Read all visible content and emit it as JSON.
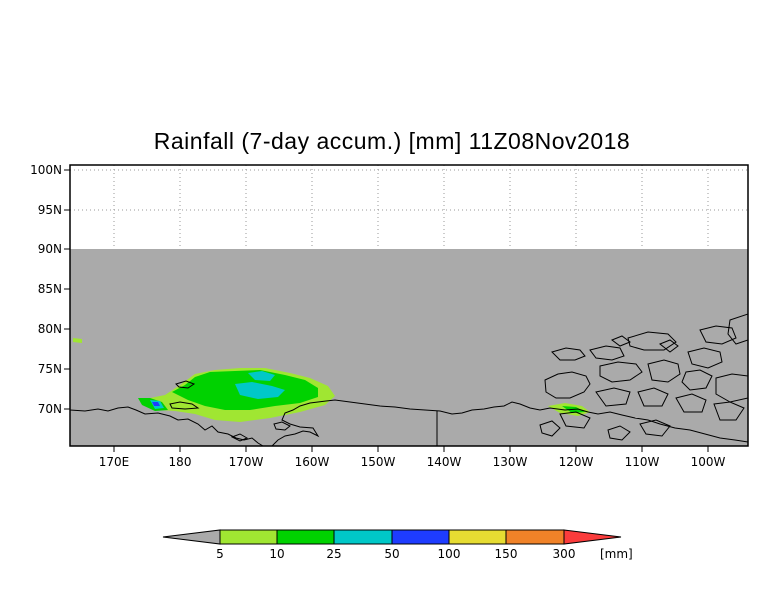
{
  "title": "Rainfall (7-day accum.) [mm] 11Z08Nov2018",
  "colors": {
    "no_data": "#aaaaaa",
    "lt5": "#aaaaaa",
    "c5_10": "#a0e632",
    "c10_25": "#00d200",
    "c25_50": "#00c8c8",
    "c50_100": "#1e3cff",
    "c100_150": "#e6dc32",
    "c150_300": "#f08228",
    "gt300": "#fa3c3c"
  },
  "map": {
    "lat_labels": [
      "100N",
      "95N",
      "90N",
      "85N",
      "80N",
      "75N",
      "70N"
    ],
    "lon_labels": [
      "170E",
      "180",
      "170W",
      "160W",
      "150W",
      "140W",
      "130W",
      "120W",
      "110W",
      "100W"
    ],
    "data_extent_north": "90N",
    "grid": "dotted"
  },
  "colorbar": {
    "labels": [
      "5",
      "10",
      "25",
      "50",
      "100",
      "150",
      "300"
    ],
    "unit": "[mm]"
  }
}
